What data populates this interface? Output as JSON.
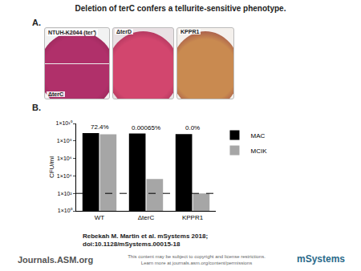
{
  "figure_title": "Deletion of terC confers a tellurite-sensitive phenotype.",
  "panel_a": {
    "label": "A.",
    "plates": [
      {
        "top_label": "NTUH-K2044 (ter⁺)",
        "bottom_label": "ΔterC"
      },
      {
        "top_label": "ΔterD"
      },
      {
        "top_label": "KPPR1"
      }
    ]
  },
  "chart_data": {
    "panel_label": "B.",
    "type": "bar",
    "categories": [
      "WT",
      "ΔterC",
      "KPPR1"
    ],
    "series": [
      {
        "name": "MAC",
        "color": "#000000",
        "values": [
          800000000,
          700000000,
          600000000
        ]
      },
      {
        "name": "MCIK",
        "color": "#a6a6a6",
        "values": [
          579000000,
          4500,
          100
        ]
      }
    ],
    "y_label": "CFU/ml",
    "log": "y",
    "ylim": [
      1,
      10000000000
    ],
    "yticks": [
      {
        "value": 1,
        "label": "1×10⁰"
      },
      {
        "value": 100,
        "label": "1×10²"
      },
      {
        "value": 10000,
        "label": "1×10⁴"
      },
      {
        "value": 1000000,
        "label": "1×10⁶"
      },
      {
        "value": 100000000,
        "label": "1×10⁸"
      },
      {
        "value": 10000000000,
        "label": "1×10¹⁰"
      }
    ],
    "legend": "upper right",
    "annotations": [
      {
        "category": "WT",
        "text": "72.4%"
      },
      {
        "category": "ΔterC",
        "text": "0.00065%"
      },
      {
        "category": "KPPR1",
        "text": "0.0%"
      }
    ],
    "reference_line": {
      "value": 100,
      "line_style": "dashed"
    }
  },
  "footer": {
    "citation": [
      "Rebekah M. Martin et al. mSystems 2018;",
      "doi:10.1128/mSystems.00015-18"
    ],
    "journal": "Journals.ASM.org",
    "notice": [
      "This content may be subject to copyright and license restrictions.",
      "Learn more at journals.asm.org/content/permissions"
    ],
    "logo": "mSystems"
  }
}
